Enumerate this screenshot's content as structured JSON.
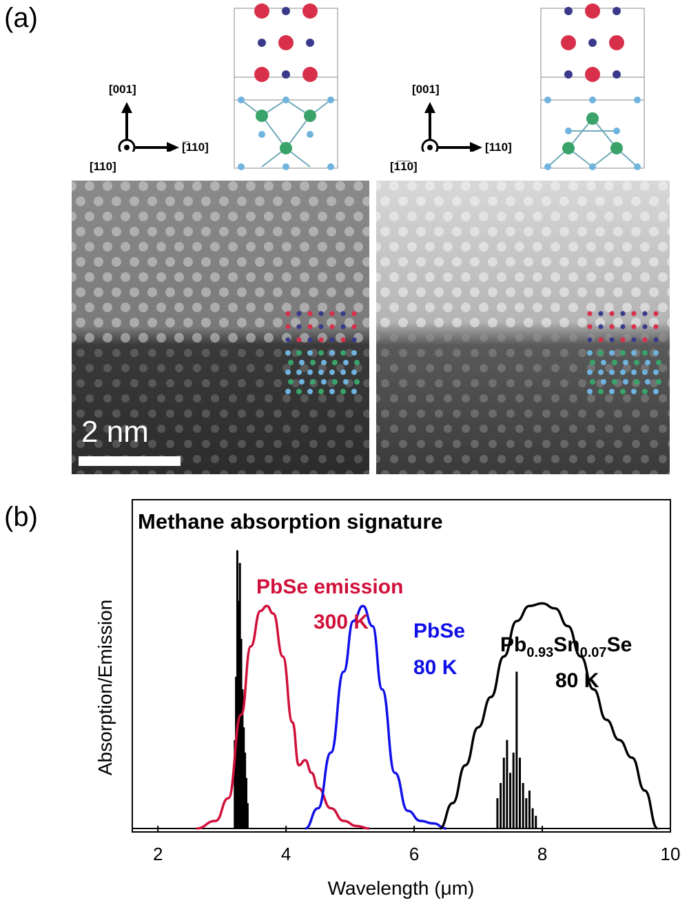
{
  "figure": {
    "panel_a_label": "(a)",
    "panel_b_label": "(b)"
  },
  "panel_a": {
    "left": {
      "axis_up": "[001]",
      "axis_right": "[̅110]",
      "axis_out": "[110]"
    },
    "right": {
      "axis_up": "[001]",
      "axis_right": "[110]",
      "axis_out": "[1̅1̅0]"
    },
    "scale_bar": "2 nm",
    "colors": {
      "pb_atom": "#d8304a",
      "se_atom": "#3a3a8c",
      "substrate_light": "#6fb3de",
      "substrate_green": "#3aa36a"
    }
  },
  "chart_data": {
    "type": "line",
    "title": "Methane absorption signature",
    "xlabel": "Wavelength (μm)",
    "ylabel": "Absorption/Emission",
    "xlim": [
      1.6,
      10
    ],
    "ylim": [
      0,
      1.15
    ],
    "xticks": [
      "2",
      "4",
      "6",
      "8",
      "10"
    ],
    "xtick_values": [
      2,
      4,
      6,
      8,
      10
    ],
    "series": [
      {
        "name": "PbSe emission 300 K",
        "color": "#d0103a",
        "x": [
          2.6,
          2.9,
          3.1,
          3.3,
          3.45,
          3.6,
          3.7,
          3.8,
          3.95,
          4.1,
          4.2,
          4.3,
          4.4,
          4.5,
          4.7,
          4.9,
          5.1,
          5.3
        ],
        "y": [
          0.0,
          0.03,
          0.12,
          0.45,
          0.72,
          0.86,
          0.88,
          0.85,
          0.68,
          0.42,
          0.25,
          0.27,
          0.22,
          0.16,
          0.08,
          0.03,
          0.01,
          0.0
        ]
      },
      {
        "name": "PbSe 80 K",
        "color": "#1010e8",
        "x": [
          4.3,
          4.5,
          4.7,
          4.9,
          5.05,
          5.2,
          5.35,
          5.5,
          5.7,
          5.9,
          6.1,
          6.3,
          6.5
        ],
        "y": [
          0.0,
          0.08,
          0.3,
          0.62,
          0.82,
          0.88,
          0.8,
          0.55,
          0.22,
          0.07,
          0.03,
          0.02,
          0.0
        ]
      },
      {
        "name": "Pb0.93Sn0.07Se 80 K",
        "color": "#000000",
        "x": [
          6.4,
          6.6,
          6.8,
          7.0,
          7.2,
          7.4,
          7.6,
          7.8,
          8.0,
          8.2,
          8.4,
          8.6,
          8.8,
          9.0,
          9.2,
          9.4,
          9.6,
          9.8
        ],
        "y": [
          0.0,
          0.1,
          0.25,
          0.4,
          0.52,
          0.68,
          0.82,
          0.88,
          0.89,
          0.87,
          0.8,
          0.68,
          0.55,
          0.43,
          0.35,
          0.28,
          0.15,
          0.0
        ]
      }
    ],
    "methane_peaks": {
      "color": "#000000",
      "x": [
        3.2,
        3.22,
        3.24,
        3.26,
        3.28,
        3.3,
        3.32,
        3.34,
        3.36,
        3.38,
        3.4,
        7.3,
        7.35,
        7.4,
        7.45,
        7.5,
        7.55,
        7.6,
        7.65,
        7.7,
        7.75,
        7.8,
        7.85,
        7.9
      ],
      "y": [
        0.35,
        0.6,
        1.1,
        0.9,
        1.05,
        0.75,
        0.55,
        0.4,
        0.3,
        0.2,
        0.1,
        0.12,
        0.18,
        0.28,
        0.35,
        0.22,
        0.3,
        0.62,
        0.28,
        0.18,
        0.12,
        0.15,
        0.08,
        0.05
      ]
    },
    "annotations": [
      {
        "text": "PbSe emission",
        "color": "#d0103a"
      },
      {
        "text": "300 K",
        "color": "#d0103a"
      },
      {
        "text": "PbSe",
        "color": "#1010e8"
      },
      {
        "text": "80 K",
        "color": "#1010e8"
      },
      {
        "text": "Pb",
        "color": "#000000"
      },
      {
        "text": "0.93",
        "color": "#000000"
      },
      {
        "text": "Sn",
        "color": "#000000"
      },
      {
        "text": "0.07",
        "color": "#000000"
      },
      {
        "text": "Se",
        "color": "#000000"
      },
      {
        "text": "80 K",
        "color": "#000000"
      }
    ]
  }
}
